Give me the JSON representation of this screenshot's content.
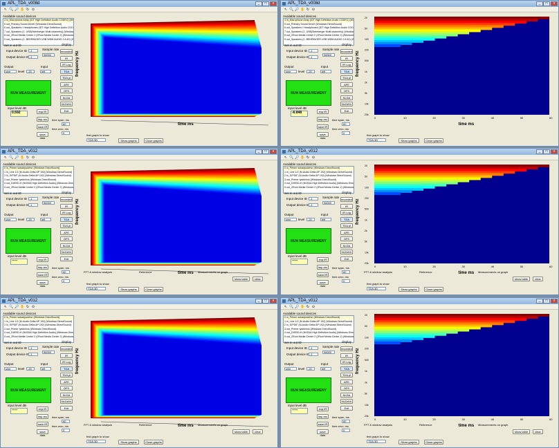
{
  "windows": [
    {
      "title": "APL_TDA_v008d",
      "view": "3d",
      "run_label": "RUN MEASUREMENT",
      "level_value": "0.592",
      "devices": [
        "4 in_Microphone Array (IDT High Definition Audio CODEC) (Windows DirectSound)",
        "5 out_Primary Sound Driver (Windows DirectSound)",
        "6 out_Speakers / Headphones (IDT High Definition Audio CODEC)",
        "7 out_Speakers (2- USB(Steinberger Multi-channels)) (Windows DirectSound)",
        "8 out_2Root Media Center 2 (2Root Media Center 2) (Windows DirectSound)",
        "9 out_Speakers (2- BEHRINGER USB WDM AUDIO 2.8.40) (Windows DirectSound)"
      ]
    },
    {
      "title": "APL_TDA_v008d",
      "view": "spec",
      "run_label": "RUN MEASUREMENT",
      "level_value": "-6.848",
      "devices": [
        "4 in_Microphone Array (IDT High Definition Audio CODEC) (Windows DirectSound)",
        "5 out_Primary Sound Driver (Windows DirectSound)",
        "6 out_Speakers / Headphones (IDT High Definition Audio CODEC)",
        "7 out_Speakers (2- USB(Steinberger Multi-channels)) (Windows DirectSound)",
        "8 out_2Root Media Center 2 (2Root Media Center 2) (Windows DirectSound)",
        "9 out_Speakers (2- BEHRINGER USB WDM AUDIO 2.8.40) (Windows DirectSound)"
      ]
    },
    {
      "title": "APL_TDA_v012",
      "view": "3d",
      "run_label": "RUN MEASUREMENT",
      "level_value": "-----",
      "devices": [
        "0 in_Primer sobadysdvhvr (Windows DirectSound)",
        "1 in_Line 1/2 (M-Audio Delta AP 192) (Windows DirectSound)",
        "2 in_S/PDIF (M-Audio Delta AP 192) (Windows DirectSound)",
        "3 out_Primer tystdvhvs (Windows DirectSound)",
        "4 out_D4E0D-H (NVIDIA High Definition Audio) (Windows DirectSound)",
        "5 out_2Root Media Center 2 (2Root Media Center 2) (Windows DirectSound)"
      ]
    },
    {
      "title": "APL_TDA_v012",
      "view": "spec",
      "run_label": "RUN MEASUREMENT",
      "level_value": "-----",
      "devices": [
        "0 in_Primer sobadysdvhvr (Windows DirectSound)",
        "1 in_Line 1/2 (M-Audio Delta AP 192) (Windows DirectSound)",
        "2 in_S/PDIF (M-Audio Delta AP 192) (Windows DirectSound)",
        "3 out_Primer tystdvhvs (Windows DirectSound)",
        "4 out_D4E0D-H (NVIDIA High Definition Audio) (Windows DirectSound)",
        "5 out_2Root Media Center 2 (2Root Media Center 2) (Windows DirectSound)"
      ]
    },
    {
      "title": "APL_TDA_v012",
      "view": "3d",
      "run_label": "RUN MEASUREMENT",
      "level_value": "-----",
      "devices": [
        "0 in_Primer sobadysdvhvr (Windows DirectSound)",
        "1 in_Line 1/2 (M-Audio Delta AP 192) (Windows DirectSound)",
        "2 in_S/PDIF (M-Audio Delta AP 192) (Windows DirectSound)",
        "3 out_Primer tystdvhvs (Windows DirectSound)",
        "4 out_D4E0D-H (NVIDIA High Definition Audio) (Windows DirectSound)",
        "5 out_2Root Media Center 2 (2Root Media Center 2) (Windows DirectSound)"
      ]
    },
    {
      "title": "APL_TDA_v012",
      "view": "spec",
      "run_label": "RUN MEASUREMENT",
      "level_value": "-----",
      "devices": [
        "0 in_Primer sobadysdvhvr (Windows DirectSound)",
        "1 in_Line 1/2 (M-Audio Delta AP 192) (Windows DirectSound)",
        "2 in_S/PDIF (M-Audio Delta AP 192) (Windows DirectSound)",
        "3 out_Primer tystdvhvs (Windows DirectSound)",
        "4 out_D4E0D-H (NVIDIA High Definition Audio) (Windows DirectSound)",
        "5 out_2Root Media Center 2 (2Root Media Center 2) (Windows DirectSound)"
      ]
    }
  ],
  "labels": {
    "available": "Available sound devices",
    "setio": "Set in out ID",
    "input_id": "Input device ID",
    "output_id": "Output device ID",
    "sample_rate": "Sample rate",
    "output": "Output",
    "input": "Input",
    "level": "level",
    "display": "display",
    "input_level": "input level dB",
    "time_span": "time span, ms",
    "time_zero": "time zero, ms",
    "first_graph": "first graph to show",
    "show_graphs": "Show graphs",
    "close_graphs": "Close graphs",
    "freq": "frequency  Hz",
    "time": "time  ms",
    "fft": "FFT & window analysis",
    "reference": "Reference",
    "measurements": "Measurements on graph",
    "show_table": "show table",
    "clear": "clear"
  },
  "buttons": [
    "recorded",
    "IR",
    "IR Log",
    "TDA",
    "TDA pl",
    "AFE",
    "OFS",
    "NLDA",
    "NLDA%",
    "Exit"
  ],
  "side_buttons": [
    "exp IR",
    "imp rec",
    "save IR",
    "save data"
  ],
  "values": {
    "in_id": "-1",
    "out_id": "-1",
    "sr": "96000",
    "out_type": "sine",
    "level": "-20",
    "time_span": "60",
    "time_zero": "0",
    "first_graph": "TDA 3D"
  },
  "axes": {
    "spec_freq": [
      "20",
      "50",
      "100",
      "200",
      "500",
      "1k",
      "2k",
      "5k",
      "10k",
      "20k"
    ],
    "time": [
      "0",
      "10",
      "20",
      "30",
      "40",
      "50",
      "60"
    ]
  },
  "colors": {
    "title_bar": "#9fbde3",
    "run": "#22e012",
    "desktop": "#7a8fa6"
  }
}
